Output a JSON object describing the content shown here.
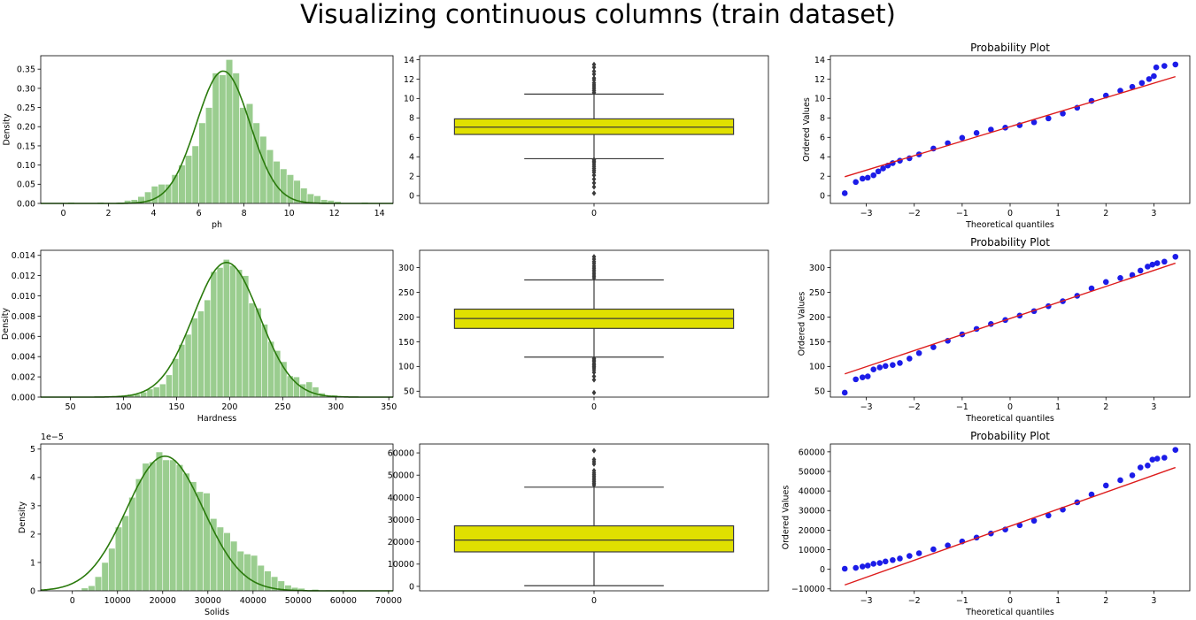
{
  "suptitle": "Visualizing continuous columns (train dataset)",
  "colors": {
    "hist_fill": "#9acd8f",
    "kde_line": "#2a7a0c",
    "box_fill": "#e0e000",
    "box_edge": "#3a3a3a",
    "qq_points": "#1c1ce8",
    "qq_line": "#dd1c1c"
  },
  "chart_data": [
    {
      "type": "histogram",
      "panel": "ph-distribution",
      "xlabel": "ph",
      "ylabel": "Density",
      "xlim": [
        -1,
        14.6
      ],
      "ylim": [
        0,
        0.385
      ],
      "xticks": [
        0,
        2,
        4,
        6,
        8,
        10,
        12,
        14
      ],
      "yticks": [
        0.0,
        0.05,
        0.1,
        0.15,
        0.2,
        0.25,
        0.3,
        0.35
      ],
      "ytick_labels": [
        "0.00",
        "0.05",
        "0.10",
        "0.15",
        "0.20",
        "0.25",
        "0.30",
        "0.35"
      ],
      "bins": [
        {
          "x0": 0.2,
          "x1": 0.5,
          "y": 0.003
        },
        {
          "x0": 1.5,
          "x1": 1.8,
          "y": 0.003
        },
        {
          "x0": 2.4,
          "x1": 2.7,
          "y": 0.003
        },
        {
          "x0": 2.7,
          "x1": 3.0,
          "y": 0.008
        },
        {
          "x0": 3.0,
          "x1": 3.3,
          "y": 0.01
        },
        {
          "x0": 3.3,
          "x1": 3.6,
          "y": 0.018
        },
        {
          "x0": 3.6,
          "x1": 3.9,
          "y": 0.03
        },
        {
          "x0": 3.9,
          "x1": 4.2,
          "y": 0.045
        },
        {
          "x0": 4.2,
          "x1": 4.5,
          "y": 0.05
        },
        {
          "x0": 4.5,
          "x1": 4.8,
          "y": 0.05
        },
        {
          "x0": 4.8,
          "x1": 5.1,
          "y": 0.075
        },
        {
          "x0": 5.1,
          "x1": 5.4,
          "y": 0.1
        },
        {
          "x0": 5.4,
          "x1": 5.7,
          "y": 0.125
        },
        {
          "x0": 5.7,
          "x1": 6.0,
          "y": 0.15
        },
        {
          "x0": 6.0,
          "x1": 6.3,
          "y": 0.21
        },
        {
          "x0": 6.3,
          "x1": 6.6,
          "y": 0.25
        },
        {
          "x0": 6.6,
          "x1": 6.9,
          "y": 0.34
        },
        {
          "x0": 6.9,
          "x1": 7.2,
          "y": 0.335
        },
        {
          "x0": 7.2,
          "x1": 7.5,
          "y": 0.375
        },
        {
          "x0": 7.5,
          "x1": 7.8,
          "y": 0.34
        },
        {
          "x0": 7.8,
          "x1": 8.1,
          "y": 0.25
        },
        {
          "x0": 8.1,
          "x1": 8.4,
          "y": 0.26
        },
        {
          "x0": 8.4,
          "x1": 8.7,
          "y": 0.21
        },
        {
          "x0": 8.7,
          "x1": 9.0,
          "y": 0.175
        },
        {
          "x0": 9.0,
          "x1": 9.3,
          "y": 0.14
        },
        {
          "x0": 9.3,
          "x1": 9.6,
          "y": 0.11
        },
        {
          "x0": 9.6,
          "x1": 9.9,
          "y": 0.09
        },
        {
          "x0": 9.9,
          "x1": 10.2,
          "y": 0.075
        },
        {
          "x0": 10.2,
          "x1": 10.5,
          "y": 0.06
        },
        {
          "x0": 10.5,
          "x1": 10.8,
          "y": 0.04
        },
        {
          "x0": 10.8,
          "x1": 11.1,
          "y": 0.025
        },
        {
          "x0": 11.1,
          "x1": 11.4,
          "y": 0.02
        },
        {
          "x0": 11.4,
          "x1": 11.7,
          "y": 0.01
        },
        {
          "x0": 11.7,
          "x1": 12.0,
          "y": 0.008
        },
        {
          "x0": 12.0,
          "x1": 12.3,
          "y": 0.005
        },
        {
          "x0": 13.2,
          "x1": 13.5,
          "y": 0.003
        }
      ],
      "kde": {
        "mean": 7.08,
        "sd": 1.18,
        "peak": 0.345
      }
    },
    {
      "type": "boxplot",
      "panel": "ph-boxplot",
      "category": "0",
      "ylim": [
        -0.8,
        14.4
      ],
      "yticks": [
        0,
        2,
        4,
        6,
        8,
        10,
        12,
        14
      ],
      "q1": 6.3,
      "median": 7.05,
      "q3": 7.9,
      "whisker_low": 3.8,
      "whisker_high": 10.45,
      "outliers": [
        0.25,
        0.9,
        1.3,
        1.7,
        2.1,
        2.4,
        2.6,
        2.8,
        3.0,
        3.2,
        3.4,
        3.55,
        3.7,
        10.6,
        10.8,
        11.0,
        11.2,
        11.4,
        11.6,
        11.9,
        12.1,
        12.5,
        12.8,
        13.2,
        13.5
      ]
    },
    {
      "type": "scatter",
      "panel": "ph-probability-plot",
      "title": "Probability Plot",
      "xlabel": "Theoretical quantiles",
      "ylabel": "Ordered Values",
      "xlim": [
        -3.75,
        3.75
      ],
      "ylim": [
        -0.8,
        14.4
      ],
      "xticks": [
        -3,
        -2,
        -1,
        0,
        1,
        2,
        3
      ],
      "yticks": [
        0,
        2,
        4,
        6,
        8,
        10,
        12,
        14
      ],
      "line": {
        "x": [
          -3.45,
          3.45
        ],
        "y": [
          1.95,
          12.25
        ]
      },
      "points": {
        "x": [
          -3.45,
          -3.22,
          -3.08,
          -2.97,
          -2.85,
          -2.75,
          -2.65,
          -2.55,
          -2.45,
          -2.3,
          -2.1,
          -1.9,
          -1.6,
          -1.3,
          -1.0,
          -0.7,
          -0.4,
          -0.1,
          0.2,
          0.5,
          0.8,
          1.1,
          1.4,
          1.7,
          2.0,
          2.3,
          2.55,
          2.75,
          2.9,
          3.0,
          3.05,
          3.22,
          3.45
        ],
        "y": [
          0.25,
          1.4,
          1.75,
          1.85,
          2.1,
          2.5,
          2.8,
          3.1,
          3.35,
          3.6,
          3.85,
          4.25,
          4.85,
          5.4,
          5.95,
          6.45,
          6.8,
          7.0,
          7.25,
          7.55,
          7.95,
          8.45,
          9.05,
          9.75,
          10.3,
          10.8,
          11.2,
          11.6,
          12.0,
          12.3,
          13.2,
          13.35,
          13.5
        ]
      }
    },
    {
      "type": "histogram",
      "panel": "hardness-distribution",
      "xlabel": "Hardness",
      "ylabel": "Density",
      "xlim": [
        22,
        354
      ],
      "ylim": [
        0,
        0.0145
      ],
      "xticks": [
        50,
        100,
        150,
        200,
        250,
        300,
        350
      ],
      "yticks": [
        0,
        0.002,
        0.004,
        0.006,
        0.008,
        0.01,
        0.012,
        0.014
      ],
      "ytick_labels": [
        "0.000",
        "0.002",
        "0.004",
        "0.006",
        "0.008",
        "0.010",
        "0.012",
        "0.014"
      ],
      "bins": [
        {
          "x0": 98,
          "x1": 104,
          "y": 0.0001
        },
        {
          "x0": 104,
          "x1": 110,
          "y": 0.0002
        },
        {
          "x0": 110,
          "x1": 116,
          "y": 0.0003
        },
        {
          "x0": 116,
          "x1": 122,
          "y": 0.0005
        },
        {
          "x0": 122,
          "x1": 128,
          "y": 0.0008
        },
        {
          "x0": 128,
          "x1": 134,
          "y": 0.001
        },
        {
          "x0": 134,
          "x1": 140,
          "y": 0.0013
        },
        {
          "x0": 140,
          "x1": 146,
          "y": 0.0022
        },
        {
          "x0": 146,
          "x1": 152,
          "y": 0.0038
        },
        {
          "x0": 152,
          "x1": 158,
          "y": 0.0052
        },
        {
          "x0": 158,
          "x1": 164,
          "y": 0.0062
        },
        {
          "x0": 164,
          "x1": 170,
          "y": 0.0078
        },
        {
          "x0": 170,
          "x1": 176,
          "y": 0.0085
        },
        {
          "x0": 176,
          "x1": 182,
          "y": 0.0096
        },
        {
          "x0": 182,
          "x1": 188,
          "y": 0.0124
        },
        {
          "x0": 188,
          "x1": 194,
          "y": 0.0128
        },
        {
          "x0": 194,
          "x1": 200,
          "y": 0.0136
        },
        {
          "x0": 200,
          "x1": 206,
          "y": 0.013
        },
        {
          "x0": 206,
          "x1": 212,
          "y": 0.0126
        },
        {
          "x0": 212,
          "x1": 218,
          "y": 0.012
        },
        {
          "x0": 218,
          "x1": 224,
          "y": 0.0093
        },
        {
          "x0": 224,
          "x1": 230,
          "y": 0.0088
        },
        {
          "x0": 230,
          "x1": 236,
          "y": 0.0072
        },
        {
          "x0": 236,
          "x1": 242,
          "y": 0.0055
        },
        {
          "x0": 242,
          "x1": 248,
          "y": 0.0046
        },
        {
          "x0": 248,
          "x1": 254,
          "y": 0.0035
        },
        {
          "x0": 254,
          "x1": 260,
          "y": 0.0021
        },
        {
          "x0": 260,
          "x1": 266,
          "y": 0.002
        },
        {
          "x0": 266,
          "x1": 272,
          "y": 0.0013
        },
        {
          "x0": 272,
          "x1": 278,
          "y": 0.0015
        },
        {
          "x0": 278,
          "x1": 284,
          "y": 0.001
        },
        {
          "x0": 284,
          "x1": 290,
          "y": 0.0004
        },
        {
          "x0": 296,
          "x1": 302,
          "y": 0.0002
        }
      ],
      "kde": {
        "mean": 197,
        "sd": 31,
        "peak": 0.0133
      }
    },
    {
      "type": "boxplot",
      "panel": "hardness-boxplot",
      "category": "0",
      "ylim": [
        38,
        335
      ],
      "yticks": [
        50,
        100,
        150,
        200,
        250,
        300
      ],
      "q1": 177,
      "median": 197,
      "q3": 216,
      "whisker_low": 119,
      "whisker_high": 275,
      "outliers": [
        47,
        73,
        80,
        88,
        93,
        97,
        100,
        103,
        106,
        110,
        113,
        116,
        279,
        283,
        287,
        291,
        295,
        299,
        303,
        308,
        312,
        317,
        322
      ]
    },
    {
      "type": "scatter",
      "panel": "hardness-probability-plot",
      "title": "Probability Plot",
      "xlabel": "Theoretical quantiles",
      "ylabel": "Ordered Values",
      "xlim": [
        -3.75,
        3.75
      ],
      "ylim": [
        38,
        335
      ],
      "xticks": [
        -3,
        -2,
        -1,
        0,
        1,
        2,
        3
      ],
      "yticks": [
        50,
        100,
        150,
        200,
        250,
        300
      ],
      "line": {
        "x": [
          -3.45,
          3.45
        ],
        "y": [
          85,
          309
        ]
      },
      "points": {
        "x": [
          -3.45,
          -3.22,
          -3.08,
          -2.97,
          -2.85,
          -2.72,
          -2.6,
          -2.45,
          -2.3,
          -2.1,
          -1.9,
          -1.6,
          -1.3,
          -1.0,
          -0.7,
          -0.4,
          -0.1,
          0.2,
          0.5,
          0.8,
          1.1,
          1.4,
          1.7,
          2.0,
          2.3,
          2.55,
          2.72,
          2.87,
          2.97,
          3.07,
          3.22,
          3.45
        ],
        "y": [
          47,
          74,
          78,
          80,
          94,
          98,
          101,
          103,
          107,
          116,
          127,
          139,
          152,
          165,
          176,
          186,
          194,
          203,
          212,
          222,
          232,
          243,
          258,
          271,
          279,
          285,
          294,
          302,
          306,
          309,
          312,
          322
        ]
      }
    },
    {
      "type": "histogram",
      "panel": "solids-distribution",
      "xlabel": "Solids",
      "ylabel": "Density",
      "exponent_label": "1e−5",
      "xlim": [
        -7000,
        71000
      ],
      "ylim": [
        0,
        5.18
      ],
      "xticks": [
        0,
        10000,
        20000,
        30000,
        40000,
        50000,
        60000,
        70000
      ],
      "yticks": [
        0,
        1,
        2,
        3,
        4,
        5
      ],
      "ytick_labels": [
        "0",
        "1",
        "2",
        "3",
        "4",
        "5"
      ],
      "bins": [
        {
          "x0": 500,
          "x1": 2000,
          "y": 0.03
        },
        {
          "x0": 2000,
          "x1": 3500,
          "y": 0.1
        },
        {
          "x0": 3500,
          "x1": 5000,
          "y": 0.18
        },
        {
          "x0": 5000,
          "x1": 6500,
          "y": 0.5
        },
        {
          "x0": 6500,
          "x1": 8000,
          "y": 1.0
        },
        {
          "x0": 8000,
          "x1": 9500,
          "y": 1.5
        },
        {
          "x0": 9500,
          "x1": 11000,
          "y": 2.25
        },
        {
          "x0": 11000,
          "x1": 12500,
          "y": 2.65
        },
        {
          "x0": 12500,
          "x1": 14000,
          "y": 3.3
        },
        {
          "x0": 14000,
          "x1": 15500,
          "y": 3.95
        },
        {
          "x0": 15500,
          "x1": 17000,
          "y": 4.5
        },
        {
          "x0": 17000,
          "x1": 18500,
          "y": 4.55
        },
        {
          "x0": 18500,
          "x1": 20000,
          "y": 4.9
        },
        {
          "x0": 20000,
          "x1": 21500,
          "y": 4.62
        },
        {
          "x0": 21500,
          "x1": 23000,
          "y": 4.62
        },
        {
          "x0": 23000,
          "x1": 24500,
          "y": 4.45
        },
        {
          "x0": 24500,
          "x1": 26000,
          "y": 4.15
        },
        {
          "x0": 26000,
          "x1": 27500,
          "y": 3.85
        },
        {
          "x0": 27500,
          "x1": 29000,
          "y": 3.5
        },
        {
          "x0": 29000,
          "x1": 30500,
          "y": 3.45
        },
        {
          "x0": 30500,
          "x1": 32000,
          "y": 2.55
        },
        {
          "x0": 32000,
          "x1": 33500,
          "y": 2.25
        },
        {
          "x0": 33500,
          "x1": 35000,
          "y": 2.05
        },
        {
          "x0": 35000,
          "x1": 36500,
          "y": 1.75
        },
        {
          "x0": 36500,
          "x1": 38000,
          "y": 1.4
        },
        {
          "x0": 38000,
          "x1": 39500,
          "y": 1.3
        },
        {
          "x0": 39500,
          "x1": 41000,
          "y": 1.25
        },
        {
          "x0": 41000,
          "x1": 42500,
          "y": 0.9
        },
        {
          "x0": 42500,
          "x1": 44000,
          "y": 0.7
        },
        {
          "x0": 44000,
          "x1": 45500,
          "y": 0.5
        },
        {
          "x0": 45500,
          "x1": 47000,
          "y": 0.35
        },
        {
          "x0": 47000,
          "x1": 48500,
          "y": 0.2
        },
        {
          "x0": 48500,
          "x1": 50000,
          "y": 0.12
        },
        {
          "x0": 50000,
          "x1": 51500,
          "y": 0.09
        },
        {
          "x0": 53000,
          "x1": 54500,
          "y": 0.05
        },
        {
          "x0": 56000,
          "x1": 57500,
          "y": 0.03
        },
        {
          "x0": 59000,
          "x1": 60500,
          "y": 0.02
        }
      ],
      "kde": {
        "mean": 20500,
        "sd": 8500,
        "peak": 4.75
      }
    },
    {
      "type": "boxplot",
      "panel": "solids-boxplot",
      "category": "0",
      "ylim": [
        -2000,
        64000
      ],
      "yticks": [
        0,
        10000,
        20000,
        30000,
        40000,
        50000,
        60000
      ],
      "q1": 15500,
      "median": 20800,
      "q3": 27200,
      "whisker_low": 300,
      "whisker_high": 44600,
      "outliers": [
        45500,
        46200,
        47000,
        47800,
        48600,
        49400,
        50200,
        51000,
        52000,
        55000,
        56000,
        57000,
        61000
      ]
    },
    {
      "type": "scatter",
      "panel": "solids-probability-plot",
      "title": "Probability Plot",
      "xlabel": "Theoretical quantiles",
      "ylabel": "Ordered Values",
      "xlim": [
        -3.75,
        3.75
      ],
      "ylim": [
        -11000,
        64000
      ],
      "xticks": [
        -3,
        -2,
        -1,
        0,
        1,
        2,
        3
      ],
      "yticks": [
        -10000,
        0,
        10000,
        20000,
        30000,
        40000,
        50000,
        60000
      ],
      "line": {
        "x": [
          -3.45,
          3.45
        ],
        "y": [
          -8000,
          52000
        ]
      },
      "points": {
        "x": [
          -3.45,
          -3.22,
          -3.08,
          -2.97,
          -2.85,
          -2.72,
          -2.6,
          -2.45,
          -2.3,
          -2.1,
          -1.9,
          -1.6,
          -1.3,
          -1.0,
          -0.7,
          -0.4,
          -0.1,
          0.2,
          0.5,
          0.8,
          1.1,
          1.4,
          1.7,
          2.0,
          2.3,
          2.55,
          2.72,
          2.87,
          2.97,
          3.07,
          3.22,
          3.45
        ],
        "y": [
          300,
          700,
          1400,
          1900,
          2800,
          3200,
          4000,
          4700,
          5500,
          6800,
          8200,
          10200,
          12200,
          14200,
          16200,
          18300,
          20300,
          22500,
          24800,
          27500,
          30500,
          34200,
          38200,
          42800,
          45500,
          48000,
          52000,
          53000,
          56000,
          56500,
          57000,
          61000
        ]
      }
    }
  ]
}
